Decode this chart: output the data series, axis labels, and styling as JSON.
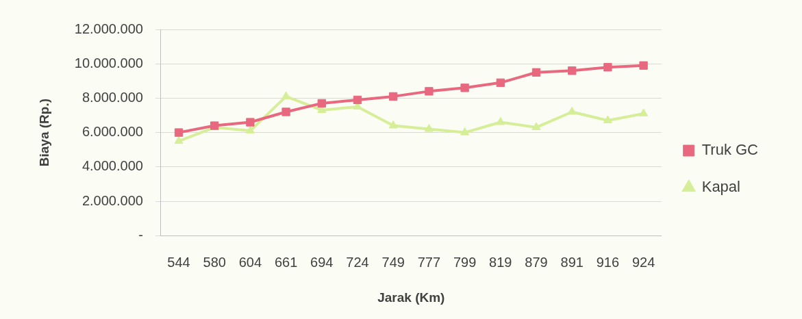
{
  "chart_data": {
    "type": "line",
    "xlabel": "Jarak (Km)",
    "ylabel": "Biaya (Rp.)",
    "categories": [
      "544",
      "580",
      "604",
      "661",
      "694",
      "724",
      "749",
      "777",
      "799",
      "819",
      "879",
      "891",
      "916",
      "924"
    ],
    "series": [
      {
        "name": "Truk GC",
        "color": "#e8697f",
        "marker": "square",
        "values": [
          6000000,
          6400000,
          6600000,
          7200000,
          7700000,
          7900000,
          8100000,
          8400000,
          8600000,
          8900000,
          9500000,
          9600000,
          9800000,
          9900000
        ]
      },
      {
        "name": "Kapal",
        "color": "#d6ee98",
        "marker": "triangle",
        "values": [
          5500000,
          6300000,
          6100000,
          8100000,
          7300000,
          7500000,
          6400000,
          6200000,
          6000000,
          6600000,
          6300000,
          7200000,
          6700000,
          7100000
        ]
      }
    ],
    "ylim": [
      0,
      12000000
    ],
    "yticks": [
      {
        "value": 0,
        "label": "-"
      },
      {
        "value": 2000000,
        "label": "2.000.000"
      },
      {
        "value": 4000000,
        "label": "4.000.000"
      },
      {
        "value": 6000000,
        "label": "6.000.000"
      },
      {
        "value": 8000000,
        "label": "8.000.000"
      },
      {
        "value": 10000000,
        "label": "10.000.000"
      },
      {
        "value": 12000000,
        "label": "12.000.000"
      }
    ],
    "grid": "y",
    "legend": "right"
  }
}
